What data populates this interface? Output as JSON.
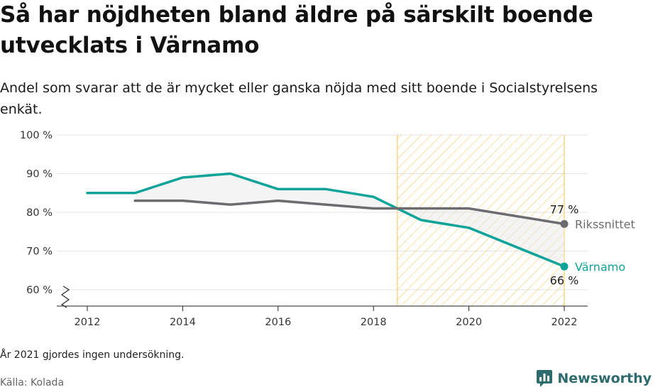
{
  "header": {
    "title": "Så har nöjdheten bland äldre på särskilt boende utvecklats i Värnamo",
    "subtitle": "Andel som svarar att de är mycket eller ganska nöjda med sitt boende i Socialstyrelsens enkät."
  },
  "footer": {
    "note": "År 2021 gjordes ingen undersökning.",
    "source": "Källa: Kolada",
    "brand": "Newsworthy"
  },
  "colors": {
    "varnamo": "#0fa399",
    "riket": "#6c6b70",
    "highlight": "#f3c24a",
    "grid": "#e3e3e3"
  },
  "chart_data": {
    "type": "line",
    "title": "Så har nöjdheten bland äldre på särskilt boende utvecklats i Värnamo",
    "xlabel": "",
    "ylabel": "",
    "xlim": [
      2011.5,
      2022.5
    ],
    "ylim": [
      56,
      100
    ],
    "x_ticks": [
      2012,
      2014,
      2016,
      2018,
      2020,
      2022
    ],
    "y_ticks": [
      60,
      70,
      80,
      90,
      100
    ],
    "y_tick_labels": [
      "60 %",
      "70 %",
      "80 %",
      "90 %",
      "100 %"
    ],
    "grid": true,
    "axis_break": true,
    "highlight_range": [
      2018.5,
      2022
    ],
    "series": [
      {
        "name": "Värnamo",
        "color": "#0fa399",
        "points": [
          [
            2012,
            85
          ],
          [
            2013,
            85
          ],
          [
            2014,
            89
          ],
          [
            2015,
            90
          ],
          [
            2016,
            86
          ],
          [
            2017,
            86
          ],
          [
            2018,
            84
          ],
          [
            2019,
            78
          ],
          [
            2020,
            76
          ],
          [
            2022,
            66
          ]
        ],
        "end_label": "66 %"
      },
      {
        "name": "Rikssnittet",
        "color": "#6c6b70",
        "points": [
          [
            2013,
            83
          ],
          [
            2014,
            83
          ],
          [
            2015,
            82
          ],
          [
            2016,
            83
          ],
          [
            2017,
            82
          ],
          [
            2018,
            81
          ],
          [
            2019,
            81
          ],
          [
            2020,
            81
          ],
          [
            2022,
            77
          ]
        ],
        "end_label": "77 %"
      }
    ]
  }
}
